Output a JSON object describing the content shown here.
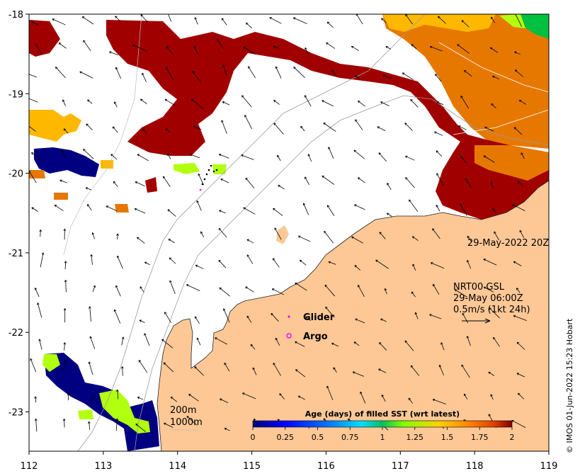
{
  "map": {
    "x_ticks": [
      "112",
      "113",
      "114",
      "115",
      "116",
      "117",
      "118",
      "119"
    ],
    "y_ticks": [
      "-18",
      "-19",
      "-20",
      "-21",
      "-22",
      "-23"
    ],
    "date_label": "29-May-2022 20Z",
    "current_info": {
      "line1": "NRT00 GSL",
      "line2": "29-May 06:00Z",
      "line3": "0.5m/s (1kt 24h)"
    },
    "legend": {
      "glider": "Glider",
      "argo": "Argo",
      "glider_color": "#ff00ff",
      "argo_color": "#ff00ff"
    },
    "depth_contours": {
      "shallow": "200m",
      "deep": "1000m"
    },
    "colorbar": {
      "title": "Age (days) of filled SST (wrt latest)",
      "ticks": [
        "0",
        "0.25",
        "0.5",
        "0.75",
        "1",
        "1.25",
        "1.5",
        "1.75",
        "2"
      ],
      "colors": [
        "#00007f",
        "#0000ff",
        "#007fff",
        "#00dfff",
        "#00c060",
        "#7fff00",
        "#ffd000",
        "#ff8000",
        "#e04000",
        "#800000"
      ]
    },
    "colors": {
      "land": "#fdc896",
      "age_two_days": "#a00000",
      "age_1_75": "#e67800",
      "age_1_5": "#ffb800",
      "age_1_2": "#b2ff10",
      "age_0": "#000080"
    },
    "credit": "© IMOS 01-Jun-2022 15:23 Hobart"
  }
}
